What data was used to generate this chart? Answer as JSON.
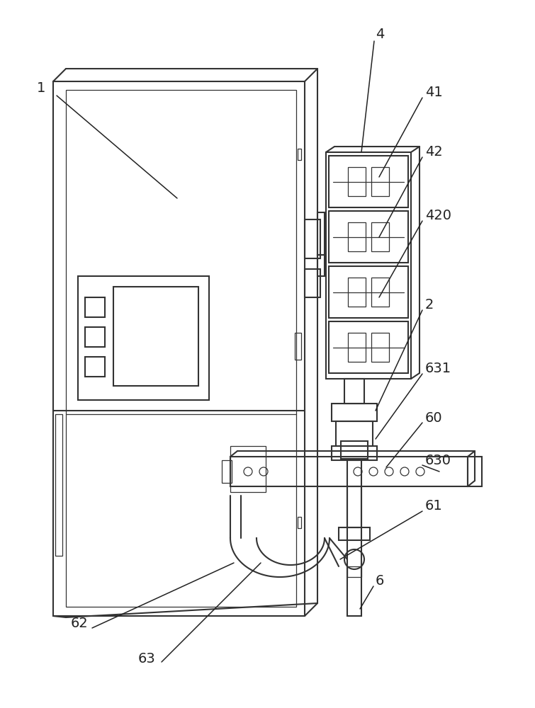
{
  "bg_color": "#ffffff",
  "line_color": "#333333",
  "lw": 1.5,
  "lw_thin": 0.9,
  "label_fs": 14,
  "label_color": "#222222"
}
